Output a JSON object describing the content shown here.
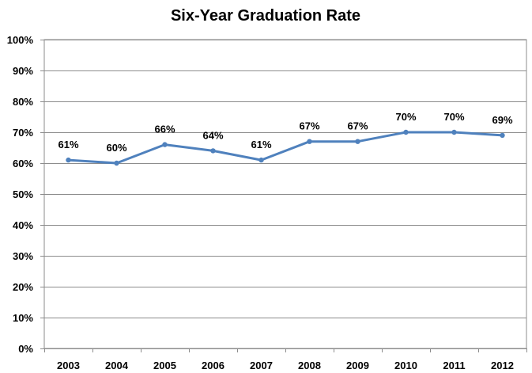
{
  "chart_data": {
    "type": "line",
    "title": "Six-Year Graduation Rate",
    "xlabel": "",
    "ylabel": "",
    "categories": [
      "2003",
      "2004",
      "2005",
      "2006",
      "2007",
      "2008",
      "2009",
      "2010",
      "2011",
      "2012"
    ],
    "series": [
      {
        "values": [
          61,
          60,
          66,
          64,
          61,
          67,
          67,
          70,
          70,
          69
        ],
        "data_labels": [
          "61%",
          "60%",
          "66%",
          "64%",
          "61%",
          "67%",
          "67%",
          "70%",
          "70%",
          "69%"
        ],
        "color": "#4f81bd"
      }
    ],
    "ylim": [
      0,
      100
    ],
    "yticks": [
      0,
      10,
      20,
      30,
      40,
      50,
      60,
      70,
      80,
      90,
      100
    ],
    "ytick_labels": [
      "0%",
      "10%",
      "20%",
      "30%",
      "40%",
      "50%",
      "60%",
      "70%",
      "80%",
      "90%",
      "100%"
    ],
    "grid": true,
    "legend": "none"
  }
}
